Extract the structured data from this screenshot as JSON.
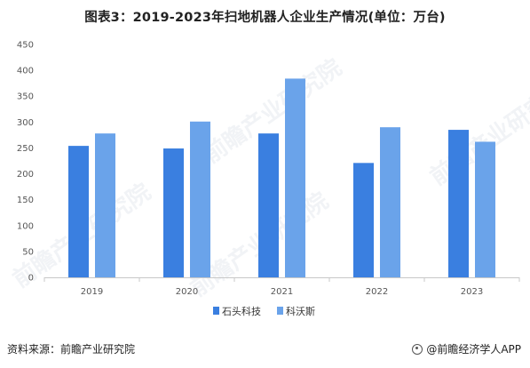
{
  "title": "图表3：2019-2023年扫地机器人企业生产情况(单位：万台)",
  "footer": {
    "source": "资料来源：前瞻产业研究院",
    "brand": "@前瞻经济学人APP"
  },
  "watermark": "前瞻产业研究院",
  "colors": {
    "series1": "#3a7fe0",
    "series2": "#6aa3ea",
    "axis": "#c8c8c8",
    "grid": "#e9e9e9"
  },
  "chart_data": {
    "type": "bar",
    "categories": [
      "2019",
      "2020",
      "2021",
      "2022",
      "2023"
    ],
    "series": [
      {
        "name": "石头科技",
        "values": [
          254,
          249,
          278,
          221,
          285
        ]
      },
      {
        "name": "科沃斯",
        "values": [
          278,
          301,
          384,
          290,
          262
        ]
      }
    ],
    "yticks": [
      0,
      50,
      100,
      150,
      200,
      250,
      300,
      350,
      400,
      450
    ],
    "ylim": [
      0,
      450
    ],
    "legend": "bottom"
  }
}
